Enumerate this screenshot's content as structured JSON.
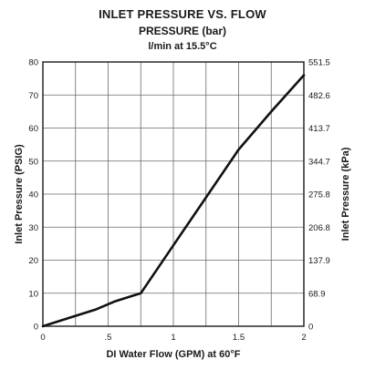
{
  "chart_data": {
    "type": "line",
    "title": "INLET PRESSURE VS. FLOW",
    "subtitle": "PRESSURE (bar)",
    "subtitle2": "l/min at 15.5°C",
    "xlabel": "DI Water Flow (GPM) at 60°F",
    "ylabel": "Inlet Pressure (PSIG)",
    "ylabel_right": "Inlet Pressure (kPa)",
    "xlim": [
      0,
      2
    ],
    "ylim": [
      0,
      80
    ],
    "x_ticks": [
      "0",
      ".5",
      "1",
      "1.5",
      "2"
    ],
    "y_ticks": [
      "0",
      "10",
      "20",
      "30",
      "40",
      "50",
      "60",
      "70",
      "80"
    ],
    "y_ticks_right": [
      "0",
      "68.9",
      "137.9",
      "206.8",
      "275.8",
      "344.7",
      "413.7",
      "482.6",
      "551.5"
    ],
    "grid": true,
    "series": [
      {
        "x": [
          0,
          0.2,
          0.4,
          0.55,
          0.75,
          1.0,
          1.25,
          1.5,
          1.75,
          2.0
        ],
        "y": [
          0,
          2.5,
          5,
          7.5,
          10,
          24.5,
          39,
          53.5,
          65,
          76
        ]
      }
    ]
  }
}
